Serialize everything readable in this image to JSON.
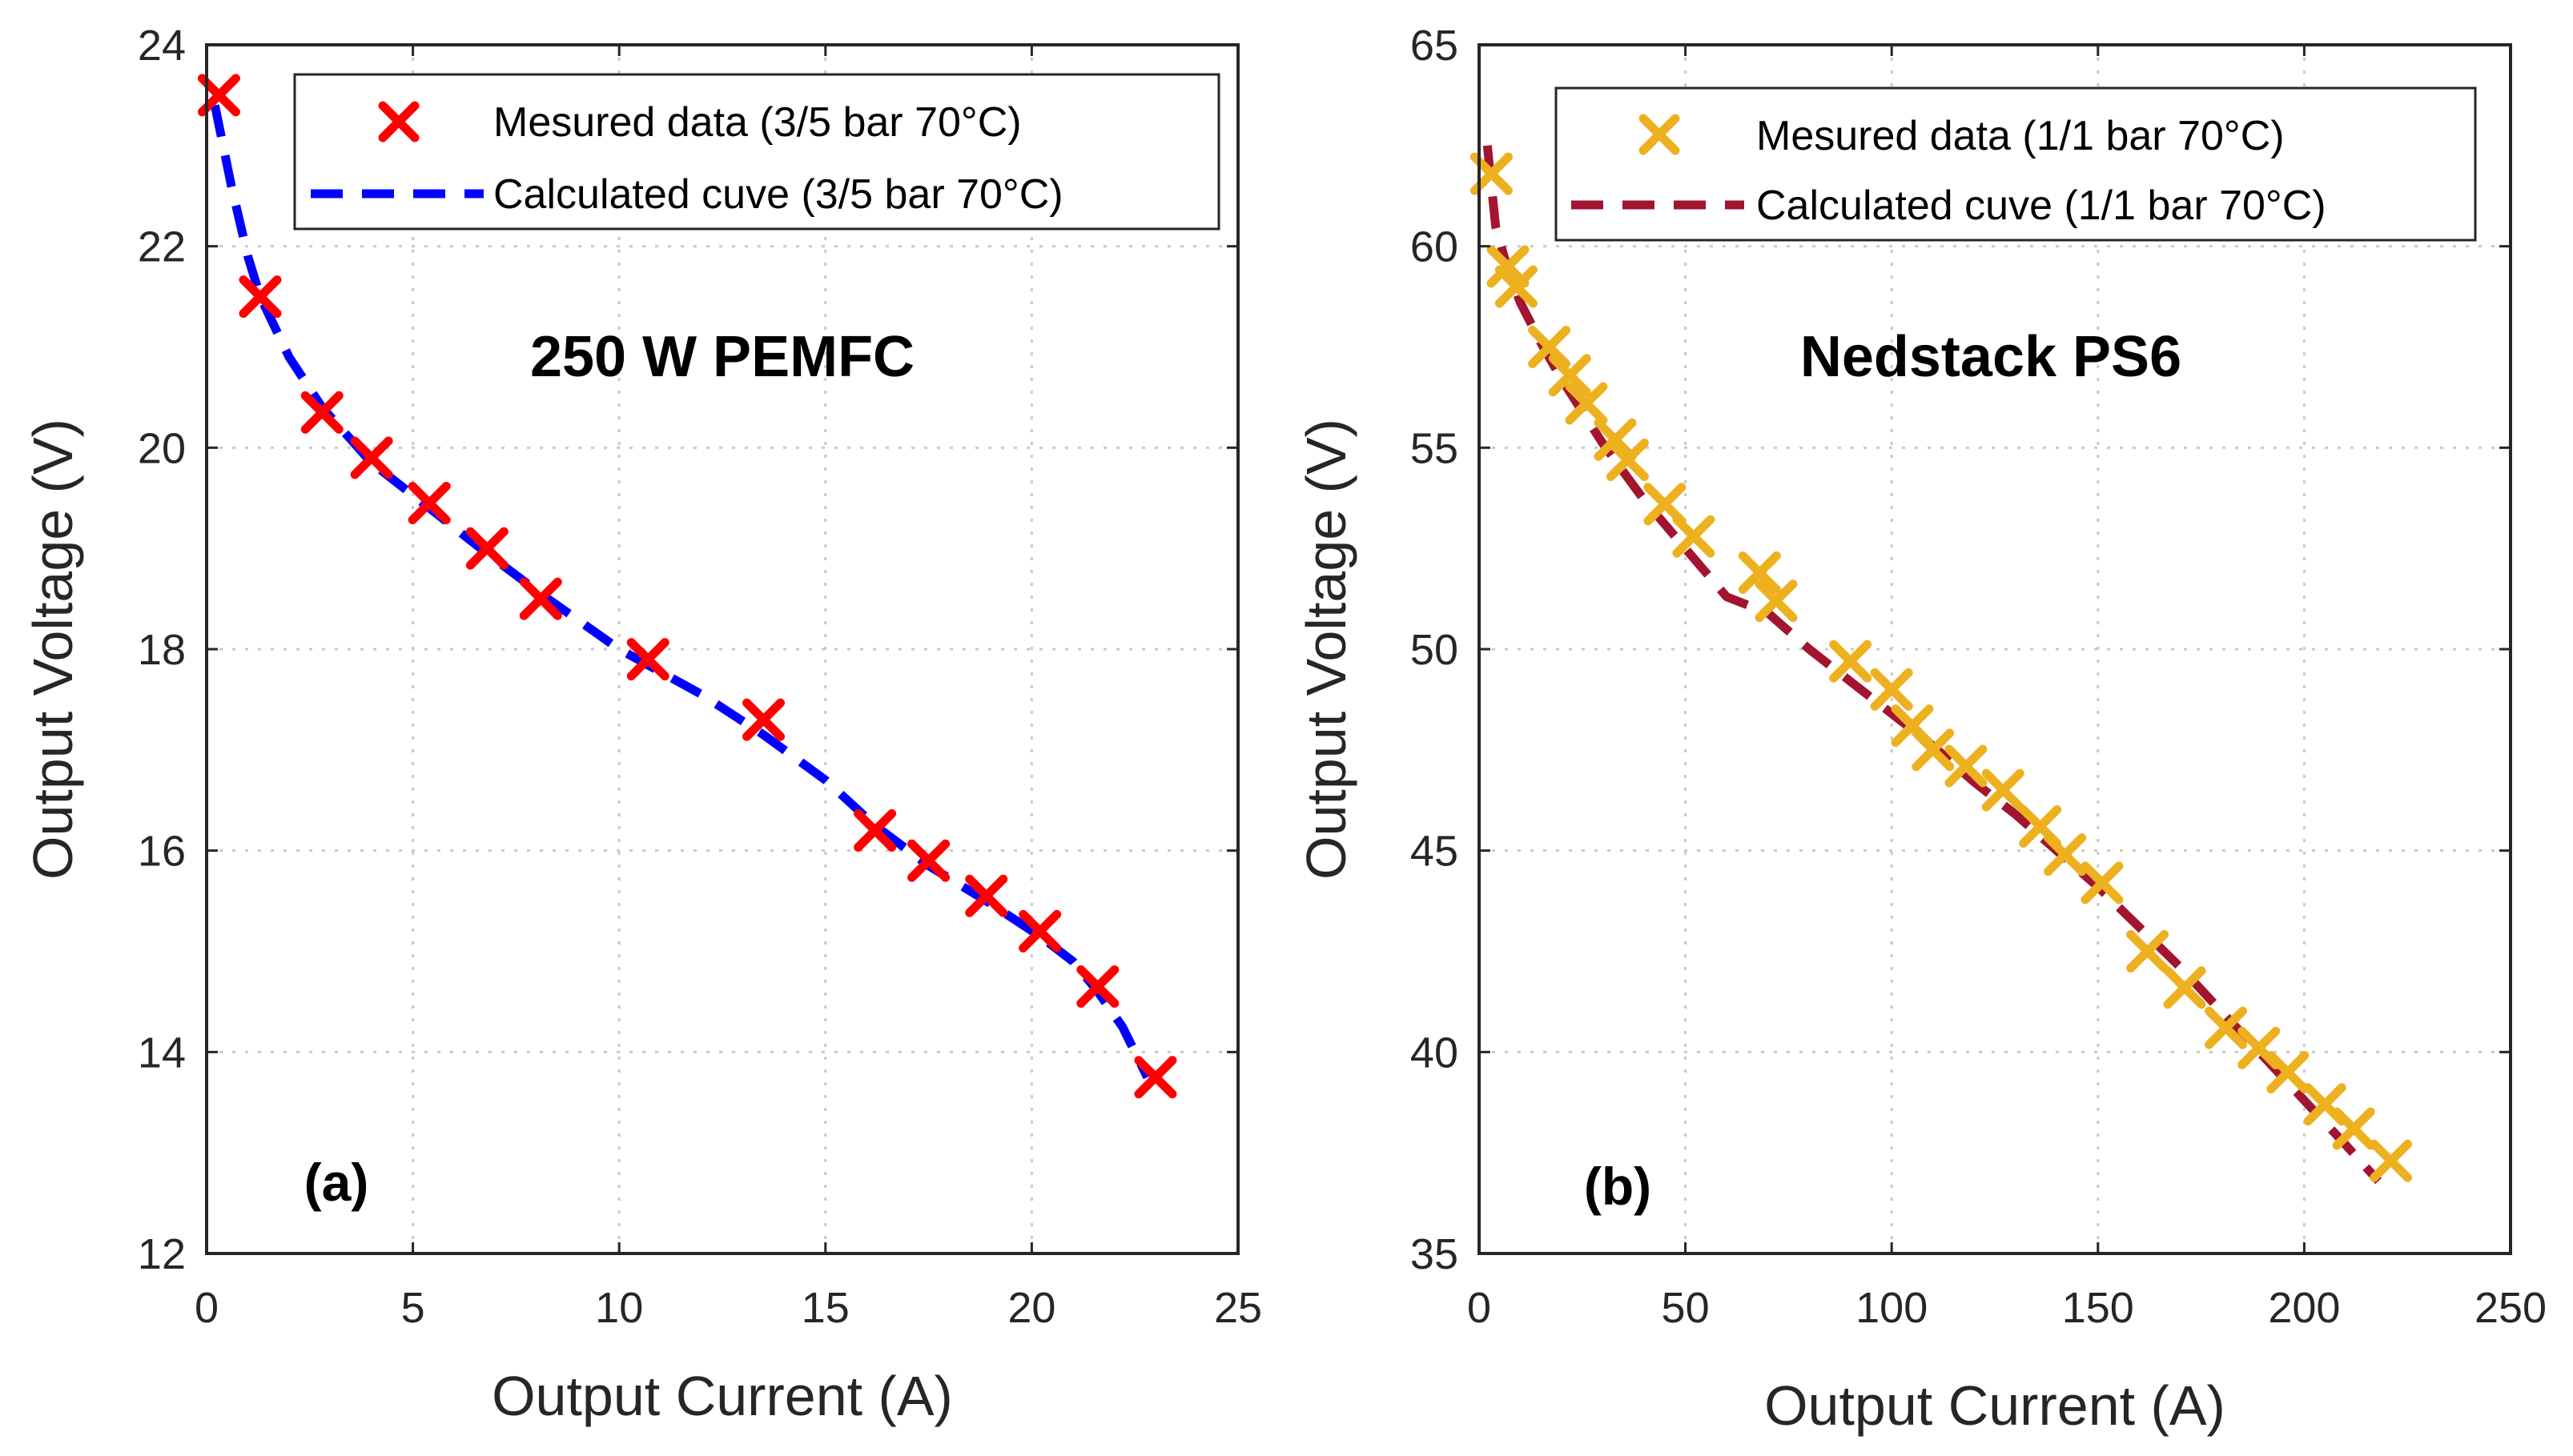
{
  "chart_data": [
    {
      "type": "scatter",
      "panel_tag": "(a)",
      "title": "250 W PEMFC",
      "xlabel": "Output Current (A)",
      "ylabel": "Output Voltage (V)",
      "xlim": [
        0,
        25
      ],
      "ylim": [
        12,
        24
      ],
      "xticks": [
        0,
        5,
        10,
        15,
        20,
        25
      ],
      "yticks": [
        12,
        14,
        16,
        18,
        20,
        22,
        24
      ],
      "xtick_labels": [
        "0",
        "5",
        "10",
        "15",
        "20",
        "25"
      ],
      "ytick_labels": [
        "12",
        "14",
        "16",
        "18",
        "20",
        "22",
        "24"
      ],
      "grid": true,
      "legend_position": "top-right",
      "series": [
        {
          "name": "Mesured data (3/5 bar 70°C)",
          "kind": "markers",
          "marker": "x",
          "color": "#ff0000",
          "x": [
            0.3,
            1.3,
            2.8,
            4.0,
            5.4,
            6.8,
            8.1,
            10.7,
            13.5,
            16.2,
            17.5,
            18.9,
            20.2,
            21.6,
            23.0
          ],
          "y": [
            23.5,
            21.5,
            20.35,
            19.9,
            19.45,
            19.0,
            18.5,
            17.9,
            17.3,
            16.2,
            15.9,
            15.55,
            15.2,
            14.65,
            13.75
          ]
        },
        {
          "name": "Calculated cuve (3/5 bar 70°C)",
          "kind": "dashed-line",
          "color": "#0000ff",
          "x": [
            0.2,
            0.6,
            1.0,
            1.3,
            2.0,
            2.8,
            4.0,
            5.4,
            6.8,
            8.1,
            10.0,
            12.0,
            13.5,
            15.0,
            16.2,
            17.5,
            18.9,
            20.2,
            21.0,
            21.6,
            22.2,
            22.8
          ],
          "y": [
            23.4,
            22.6,
            21.9,
            21.5,
            20.9,
            20.4,
            19.85,
            19.4,
            18.95,
            18.55,
            18.0,
            17.55,
            17.15,
            16.7,
            16.25,
            15.85,
            15.5,
            15.15,
            14.9,
            14.6,
            14.25,
            13.75
          ]
        }
      ]
    },
    {
      "type": "scatter",
      "panel_tag": "(b)",
      "title": "Nedstack PS6",
      "xlabel": "Output Current (A)",
      "ylabel": "Output Voltage (V)",
      "xlim": [
        0,
        250
      ],
      "ylim": [
        35,
        65
      ],
      "xticks": [
        0,
        50,
        100,
        150,
        200,
        250
      ],
      "yticks": [
        35,
        40,
        45,
        50,
        55,
        60,
        65
      ],
      "xtick_labels": [
        "0",
        "50",
        "100",
        "150",
        "200",
        "250"
      ],
      "ytick_labels": [
        "35",
        "40",
        "45",
        "50",
        "55",
        "60",
        "65"
      ],
      "grid": true,
      "legend_position": "top-right",
      "series": [
        {
          "name": "Mesured data (1/1 bar 70°C)",
          "kind": "markers",
          "marker": "x",
          "color": "#edb120",
          "x": [
            3,
            7,
            9,
            17,
            22,
            26,
            33,
            36,
            45,
            52,
            68,
            72,
            90,
            100,
            105,
            110,
            118,
            127,
            136,
            142,
            151,
            162,
            171,
            181,
            189,
            196,
            205,
            212,
            221
          ],
          "y": [
            61.8,
            59.5,
            59.0,
            57.5,
            56.8,
            56.1,
            55.2,
            54.7,
            53.6,
            52.8,
            51.9,
            51.2,
            49.7,
            49.0,
            48.1,
            47.5,
            47.1,
            46.5,
            45.6,
            44.9,
            44.2,
            42.5,
            41.6,
            40.6,
            40.1,
            39.5,
            38.7,
            38.1,
            37.3
          ]
        },
        {
          "name": "Calculated cuve (1/1 bar 70°C)",
          "kind": "dashed-line",
          "color": "#a2142f",
          "x": [
            2,
            4,
            7,
            10,
            15,
            20,
            30,
            40,
            50,
            60,
            70,
            80,
            90,
            100,
            110,
            120,
            130,
            140,
            150,
            160,
            170,
            180,
            190,
            200,
            210,
            218
          ],
          "y": [
            62.5,
            60.5,
            59.4,
            58.6,
            57.6,
            56.7,
            55.1,
            53.7,
            52.5,
            51.3,
            50.9,
            50.0,
            49.2,
            48.4,
            47.6,
            46.7,
            45.9,
            45.0,
            44.1,
            43.1,
            42.1,
            41.0,
            39.9,
            38.8,
            37.7,
            36.8
          ]
        }
      ]
    }
  ]
}
